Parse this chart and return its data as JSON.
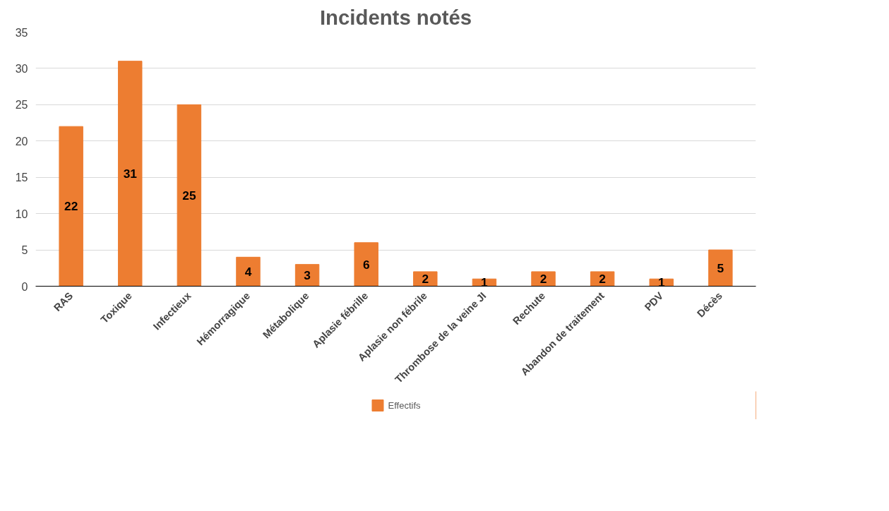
{
  "chart_data": {
    "type": "bar",
    "title": "Incidents notés",
    "categories": [
      "RAS",
      "Toxique",
      "Infectieux",
      "Hémorragique",
      "Métabolique",
      "Aplasie fébrille",
      "Aplasie non fébrile",
      "Thrombose de la veine JI",
      "Rechute",
      "Abandon de traitement",
      "PDV",
      "Décès"
    ],
    "series": [
      {
        "name": "Effectifs",
        "color": "#ed7d31",
        "values": [
          22,
          31,
          25,
          4,
          3,
          6,
          2,
          1,
          2,
          2,
          1,
          5
        ]
      }
    ],
    "ylim": [
      0,
      35
    ],
    "yticks": [
      0,
      5,
      10,
      15,
      20,
      25,
      30,
      35
    ],
    "grid": "y",
    "legend": "bottom",
    "data_labels": true
  }
}
